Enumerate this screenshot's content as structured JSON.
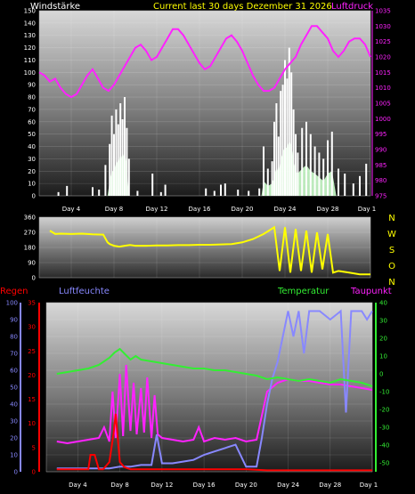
{
  "header": {
    "left_label": "Windstärke",
    "title": "Current last 30 days Dezember 31 2026",
    "right_label": "Luftdruck"
  },
  "colors": {
    "wind": "#ffffff",
    "gust_fill": "#ccffcc",
    "pressure": "#ff22ff",
    "direction": "#ffff00",
    "temperature": "#33ee33",
    "humidity": "#8888ff",
    "rain": "#ff0000",
    "dewpoint": "#ff22ff",
    "title": "#ffff00"
  },
  "direction_labels": [
    "N",
    "W",
    "S",
    "O",
    "N"
  ],
  "bottom_labels": {
    "rain": "Regen",
    "humidity": "Luftfeuchte",
    "temperature": "Temperatur",
    "dewpoint": "Taupunkt"
  },
  "chart_data": [
    {
      "type": "line",
      "name": "wind-pressure",
      "x_tick_labels": [
        "Day 4",
        "Day 8",
        "Day 12",
        "Day 16",
        "Day 20",
        "Day 24",
        "Day 28",
        "Day 1"
      ],
      "x_tick_positions": [
        4,
        8,
        12,
        16,
        20,
        24,
        28,
        32
      ],
      "xlim": [
        1,
        32
      ],
      "ylim_left": [
        0,
        150
      ],
      "y_ticks_left": [
        0,
        10,
        20,
        30,
        40,
        50,
        60,
        70,
        80,
        90,
        100,
        110,
        120,
        130,
        140,
        150
      ],
      "ylim_right": [
        975,
        1035
      ],
      "y_ticks_right": [
        975,
        980,
        985,
        990,
        995,
        1000,
        1005,
        1010,
        1015,
        1020,
        1025,
        1030,
        1035
      ],
      "series": [
        {
          "name": "Luftdruck",
          "axis": "right",
          "x": [
            1,
            1.5,
            2,
            2.5,
            3,
            3.5,
            4,
            4.5,
            5,
            5.5,
            6,
            6.5,
            7,
            7.5,
            8,
            8.5,
            9,
            9.5,
            10,
            10.5,
            11,
            11.5,
            12,
            12.5,
            13,
            13.5,
            14,
            14.5,
            15,
            15.5,
            16,
            16.5,
            17,
            17.5,
            18,
            18.5,
            19,
            19.5,
            20,
            20.5,
            21,
            21.5,
            22,
            22.5,
            23,
            23.5,
            24,
            24.5,
            25,
            25.5,
            26,
            26.5,
            27,
            27.5,
            28,
            28.5,
            29,
            29.5,
            30,
            30.5,
            31,
            31.5,
            32
          ],
          "y": [
            1015,
            1014,
            1012,
            1013,
            1010,
            1008,
            1007,
            1008,
            1011,
            1014,
            1016,
            1013,
            1010,
            1009,
            1011,
            1014,
            1017,
            1020,
            1023,
            1024,
            1022,
            1019,
            1020,
            1023,
            1026,
            1029,
            1029,
            1027,
            1024,
            1021,
            1018,
            1016,
            1017,
            1020,
            1023,
            1026,
            1027,
            1025,
            1022,
            1018,
            1014,
            1011,
            1009,
            1009,
            1010,
            1013,
            1016,
            1018,
            1020,
            1024,
            1027,
            1030,
            1030,
            1028,
            1026,
            1022,
            1020,
            1022,
            1025,
            1026,
            1026,
            1024,
            1020
          ]
        },
        {
          "name": "Windstärke",
          "axis": "left",
          "style": "bars",
          "x": [
            2.8,
            3.6,
            6,
            6.6,
            7.2,
            7.6,
            7.8,
            8,
            8.2,
            8.4,
            8.6,
            8.8,
            9,
            9.2,
            9.4,
            10.2,
            11.6,
            12.4,
            12.8,
            16.6,
            17.4,
            18,
            18.4,
            19.6,
            20.6,
            21.6,
            22,
            22.4,
            22.8,
            23,
            23.2,
            23.4,
            23.6,
            23.8,
            24,
            24.2,
            24.4,
            24.6,
            24.8,
            25,
            25.2,
            25.6,
            26,
            26.4,
            26.8,
            27.2,
            27.6,
            28,
            28.4,
            29,
            29.6,
            30.4,
            31,
            31.6
          ],
          "y": [
            3,
            8,
            7,
            5,
            25,
            42,
            65,
            50,
            70,
            58,
            75,
            62,
            80,
            55,
            30,
            4,
            18,
            3,
            9,
            6,
            4,
            9,
            10,
            5,
            4,
            6,
            40,
            22,
            28,
            60,
            75,
            48,
            85,
            90,
            110,
            95,
            120,
            100,
            70,
            50,
            35,
            55,
            60,
            50,
            40,
            35,
            30,
            45,
            52,
            22,
            18,
            10,
            16,
            26
          ]
        },
        {
          "name": "gust-fill",
          "axis": "left",
          "style": "area",
          "x": [
            7.4,
            7.6,
            7.8,
            8,
            8.2,
            8.4,
            8.6,
            8.8,
            9,
            9.2,
            9.4,
            21.8,
            22,
            22.4,
            22.8,
            23,
            23.2,
            23.4,
            23.6,
            23.8,
            24,
            24.2,
            24.4,
            24.6,
            24.8,
            25,
            25.2,
            25.6,
            26,
            26.4,
            26.8,
            27.2,
            27.6,
            28,
            28.4,
            28.8
          ],
          "y": [
            0,
            12,
            22,
            18,
            30,
            25,
            35,
            28,
            38,
            22,
            0,
            0,
            12,
            8,
            10,
            15,
            25,
            18,
            30,
            35,
            40,
            38,
            45,
            40,
            30,
            20,
            18,
            22,
            25,
            20,
            18,
            15,
            12,
            18,
            20,
            0
          ]
        }
      ]
    },
    {
      "type": "line",
      "name": "wind-direction",
      "xlim": [
        1,
        32
      ],
      "ylim": [
        0,
        360
      ],
      "y_ticks": [
        0,
        90,
        180,
        270,
        360
      ],
      "series": [
        {
          "name": "direction",
          "x": [
            2,
            2.5,
            3,
            4,
            5,
            6,
            7,
            7.4,
            7.6,
            8,
            8.5,
            9,
            9.5,
            10,
            11,
            12,
            13,
            14,
            15,
            16,
            17,
            18,
            19,
            20,
            21,
            22,
            22.5,
            23,
            23.5,
            24,
            24.5,
            25,
            25.5,
            26,
            26.5,
            27,
            27.5,
            28,
            28.5,
            29,
            30,
            31,
            32
          ],
          "y": [
            280,
            260,
            262,
            260,
            262,
            258,
            256,
            210,
            200,
            190,
            185,
            190,
            195,
            190,
            190,
            192,
            192,
            194,
            194,
            196,
            196,
            198,
            200,
            210,
            230,
            260,
            280,
            300,
            40,
            300,
            30,
            290,
            40,
            280,
            30,
            270,
            50,
            260,
            30,
            40,
            30,
            20,
            20
          ]
        }
      ]
    },
    {
      "type": "line",
      "name": "rain-humidity-temperature-dewpoint",
      "x_tick_labels": [
        "Day 4",
        "Day 8",
        "Day 12",
        "Day 16",
        "Day 20",
        "Day 24",
        "Day 28",
        "Day 1"
      ],
      "x_tick_positions": [
        4,
        8,
        12,
        16,
        20,
        24,
        28,
        32
      ],
      "xlim": [
        1,
        32
      ],
      "ylim_humidity": [
        0,
        100
      ],
      "y_ticks_humidity": [
        0,
        10,
        20,
        30,
        40,
        50,
        60,
        70,
        80,
        90,
        100
      ],
      "ylim_rain": [
        0,
        35
      ],
      "y_ticks_rain": [
        0,
        5,
        10,
        15,
        20,
        25,
        30,
        35
      ],
      "ylim_temperature": [
        -55,
        40
      ],
      "y_ticks_temperature": [
        -50,
        -40,
        -30,
        -20,
        -10,
        0,
        10,
        20,
        30,
        40
      ],
      "series": [
        {
          "name": "Temperatur",
          "axis": "temperature",
          "x": [
            2,
            3,
            4,
            5,
            6,
            7,
            7.5,
            8,
            8.5,
            9,
            9.5,
            10,
            11,
            12,
            13,
            14,
            15,
            16,
            17,
            18,
            19,
            20,
            21,
            22,
            23,
            24,
            25,
            26,
            27,
            28,
            29,
            30,
            31,
            32
          ],
          "y": [
            0,
            1,
            2,
            3,
            5,
            9,
            12,
            14,
            11,
            8,
            10,
            8,
            7,
            6,
            5,
            4,
            3,
            3,
            2,
            2,
            1,
            0,
            -1,
            -3,
            -2,
            -3,
            -4,
            -3,
            -4,
            -5,
            -3,
            -4,
            -5,
            -7
          ]
        },
        {
          "name": "Luftfeuchte",
          "axis": "humidity",
          "x": [
            2,
            4,
            6,
            7,
            8,
            9,
            10,
            11,
            11.5,
            12,
            13,
            14,
            15,
            16,
            17,
            18,
            19,
            20,
            21,
            21.5,
            22,
            22.5,
            23,
            23.5,
            24,
            24.5,
            25,
            25.5,
            26,
            27,
            28,
            29,
            29.5,
            30,
            31,
            31.5,
            32
          ],
          "y": [
            2,
            2,
            2,
            2,
            3,
            3,
            4,
            4,
            22,
            5,
            5,
            6,
            7,
            10,
            12,
            14,
            16,
            3,
            3,
            20,
            40,
            55,
            65,
            80,
            95,
            80,
            95,
            70,
            95,
            95,
            90,
            95,
            35,
            95,
            95,
            90,
            95
          ]
        },
        {
          "name": "Regen",
          "axis": "rain",
          "x": [
            2,
            3,
            4,
            5,
            5.2,
            5.6,
            6,
            6.4,
            7,
            7.4,
            7.6,
            8,
            8.4,
            9,
            10,
            12,
            14,
            16,
            18,
            20,
            22,
            24,
            26,
            28,
            30,
            32
          ],
          "y": [
            0.5,
            0.5,
            0.5,
            0.5,
            3.5,
            3.5,
            0.5,
            0.5,
            2,
            8,
            12,
            2,
            1,
            0.5,
            0.5,
            0.5,
            0.5,
            0.5,
            0.5,
            0.5,
            0.3,
            0.3,
            0.3,
            0.3,
            0.3,
            0.3
          ]
        },
        {
          "name": "Taupunkt",
          "axis": "temperature",
          "x": [
            2,
            3,
            4,
            5,
            6,
            6.5,
            7,
            7.3,
            7.6,
            8,
            8.3,
            8.6,
            9,
            9.3,
            9.6,
            10,
            10.3,
            10.6,
            11,
            11.3,
            11.6,
            12,
            13,
            14,
            15,
            15.5,
            16,
            17,
            18,
            19,
            20,
            21,
            22,
            23,
            24,
            25,
            26,
            27,
            28,
            29,
            30,
            31,
            32
          ],
          "y": [
            -38,
            -39,
            -38,
            -37,
            -36,
            -30,
            -38,
            -10,
            -36,
            0,
            -35,
            5,
            -32,
            -5,
            -34,
            -8,
            -33,
            -2,
            -36,
            -12,
            -34,
            -36,
            -37,
            -38,
            -37,
            -30,
            -38,
            -36,
            -37,
            -36,
            -38,
            -37,
            -10,
            -5,
            -3,
            -4,
            -4,
            -5,
            -6,
            -6,
            -7,
            -8,
            -9
          ]
        }
      ]
    }
  ]
}
